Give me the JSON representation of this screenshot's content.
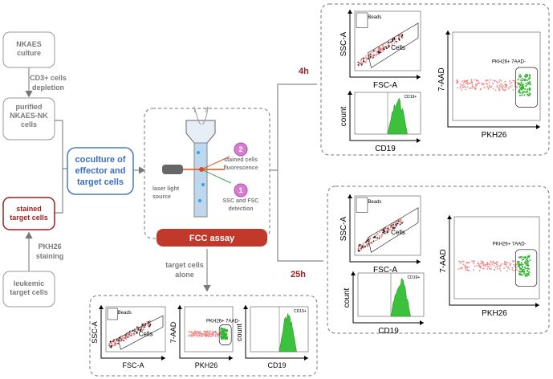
{
  "left_flow": {
    "steps": [
      {
        "lines": [
          "NKAES",
          "culture"
        ]
      },
      {
        "lines": [
          "purified",
          "NKAES-NK",
          "cells"
        ]
      },
      {
        "lines": [
          "stained",
          "target cells"
        ]
      },
      {
        "lines": [
          "leukemic",
          "target cells"
        ]
      }
    ],
    "arrows": [
      {
        "lines": [
          "CD3+ cells",
          "depletion"
        ]
      },
      {
        "lines": [
          "PKH26",
          "staining"
        ]
      }
    ]
  },
  "coculture": {
    "lines": [
      "coculture of",
      "effector and",
      "target cells"
    ]
  },
  "assay": {
    "title": "FCC assay",
    "laser": [
      "laser light",
      "source"
    ],
    "steps": [
      {
        "number": "2",
        "lines": [
          "stained cells",
          "fluorescence"
        ]
      },
      {
        "number": "1",
        "lines": [
          "SSC and FSC",
          "detection"
        ]
      }
    ]
  },
  "alone_label": [
    "target cells",
    "alone"
  ],
  "groups": [
    {
      "time": "4h",
      "scatter": {
        "y": "SSC-A",
        "x": "FSC-A",
        "gates": [
          "Beads",
          "Cells"
        ]
      },
      "hist": {
        "y": "count",
        "x": "CD19",
        "gate": "CD19+"
      },
      "viab": {
        "y": "7-AAD",
        "x": "PKH26",
        "gate": "PKH26+ 7AAD-"
      }
    },
    {
      "time": "25h",
      "scatter": {
        "y": "SSC-A",
        "x": "FSC-A",
        "gates": [
          "Beads",
          "Cells"
        ]
      },
      "hist": {
        "y": "count",
        "x": "CD19",
        "gate": "CD19+"
      },
      "viab": {
        "y": "7-AAD",
        "x": "PKH26",
        "gate": "PKH26+ 7AAD-"
      }
    },
    {
      "scatter": {
        "y": "SSC-A",
        "x": "FSC-A",
        "gates": [
          "Beads",
          "Cells"
        ]
      },
      "hist": {
        "y": "count",
        "x": "CD19",
        "gate": "CD19+"
      },
      "viab": {
        "y": "7-AAD",
        "x": "PKH26",
        "gate": "PKH26+ 7AAD-"
      }
    }
  ]
}
